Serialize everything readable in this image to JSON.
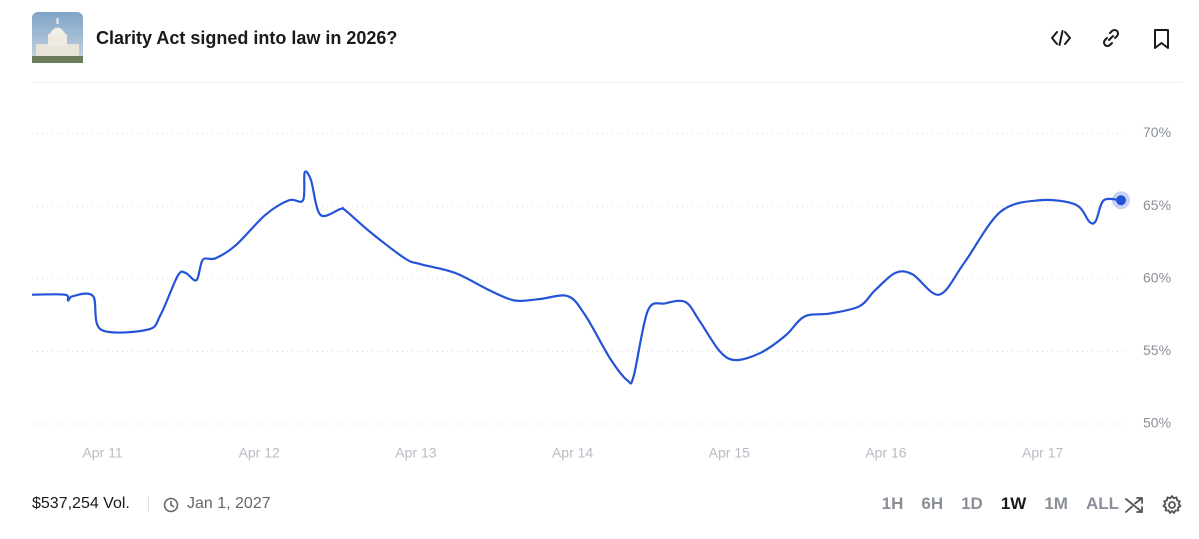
{
  "header": {
    "title": "Clarity Act signed into law in 2026?"
  },
  "chart_data": {
    "type": "line",
    "color": "#2553d8",
    "x": [
      10.55,
      10.76,
      10.78,
      10.81,
      10.94,
      10.99,
      11.29,
      11.37,
      11.48,
      11.53,
      11.6,
      11.64,
      11.72,
      11.85,
      12.04,
      12.19,
      12.28,
      12.29,
      12.33,
      12.39,
      12.52,
      12.55,
      12.71,
      12.93,
      13.03,
      13.25,
      13.47,
      13.63,
      13.79,
      13.97,
      14.08,
      14.24,
      14.35,
      14.39,
      14.48,
      14.59,
      14.72,
      14.81,
      14.94,
      15.04,
      15.2,
      15.36,
      15.48,
      15.64,
      15.83,
      15.93,
      16.06,
      16.17,
      16.34,
      16.5,
      16.73,
      16.98,
      17.21,
      17.3,
      17.34,
      17.39,
      17.5
    ],
    "values": [
      58.9,
      58.9,
      58.5,
      58.8,
      58.8,
      56.5,
      56.5,
      57.5,
      60.2,
      60.4,
      59.9,
      61.3,
      61.4,
      62.3,
      64.4,
      65.4,
      65.4,
      67.3,
      66.8,
      64.4,
      64.8,
      64.7,
      63.2,
      61.4,
      61.0,
      60.4,
      59.2,
      58.5,
      58.6,
      58.8,
      57.5,
      54.5,
      53.0,
      53.3,
      57.8,
      58.3,
      58.4,
      57.1,
      55.0,
      54.4,
      54.9,
      56.1,
      57.4,
      57.6,
      58.1,
      59.2,
      60.4,
      60.3,
      58.9,
      61.1,
      64.6,
      65.4,
      65.1,
      63.9,
      64.0,
      65.4,
      65.4
    ],
    "xlim": [
      10.55,
      17.5
    ],
    "xticks": [
      {
        "value": 11,
        "label": "Apr 11"
      },
      {
        "value": 12,
        "label": "Apr 12"
      },
      {
        "value": 13,
        "label": "Apr 13"
      },
      {
        "value": 14,
        "label": "Apr 14"
      },
      {
        "value": 15,
        "label": "Apr 15"
      },
      {
        "value": 16,
        "label": "Apr 16"
      },
      {
        "value": 17,
        "label": "Apr 17"
      }
    ],
    "ylim": [
      48.9,
      72.3
    ],
    "yticks": [
      {
        "value": 50,
        "label": "50%"
      },
      {
        "value": 55,
        "label": "55%"
      },
      {
        "value": 60,
        "label": "60%"
      },
      {
        "value": 65,
        "label": "65%"
      },
      {
        "value": 70,
        "label": "70%"
      }
    ],
    "grid": true
  },
  "footer": {
    "volume": "$537,254 Vol.",
    "end_date": "Jan 1, 2027",
    "ranges": [
      {
        "label": "1H"
      },
      {
        "label": "6H"
      },
      {
        "label": "1D"
      },
      {
        "label": "1W",
        "active": true
      },
      {
        "label": "1M"
      },
      {
        "label": "ALL"
      }
    ]
  }
}
